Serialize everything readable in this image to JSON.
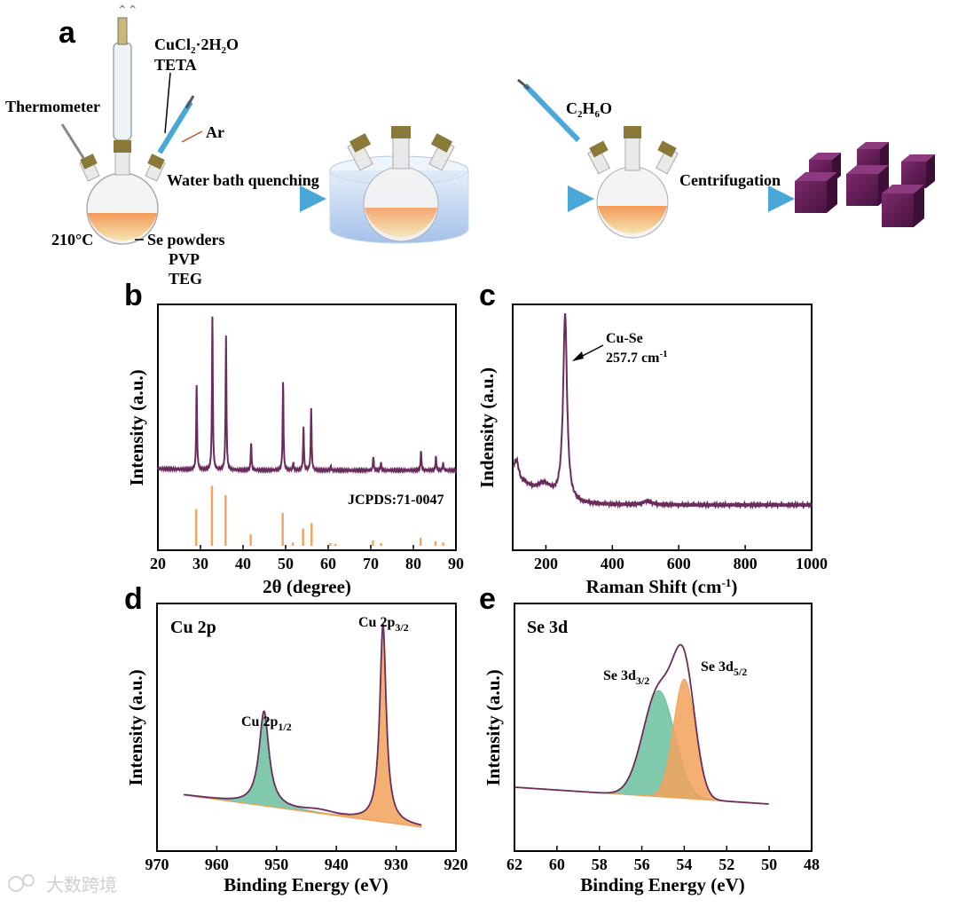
{
  "panel_labels": {
    "a": "a",
    "b": "b",
    "c": "c",
    "d": "d",
    "e": "e"
  },
  "scheme": {
    "thermometer": "Thermometer",
    "reagent_1": "CuCl",
    "reagent_1_sub": "2",
    "reagent_1_mid": "·2H",
    "reagent_1_sub2": "2",
    "reagent_1_end": "O",
    "reagent_2": "TETA",
    "gas": "Ar",
    "temperature": "210°C",
    "powder_1": "Se powders",
    "powder_2": "PVP",
    "powder_3": "TEG",
    "step_1": "Water bath quenching",
    "solvent": "C",
    "solvent_sub1": "2",
    "solvent_mid": "H",
    "solvent_sub2": "6",
    "solvent_end": "O",
    "step_2": "Centrifugation"
  },
  "watermark": "大数跨境",
  "colors": {
    "purple": "#6a2c5c",
    "orange": "#f2a25a",
    "teal": "#6bbf9f",
    "arrow": "#4aa8d8",
    "cube": "#5a1a4e"
  },
  "chart_data": [
    {
      "id": "b",
      "type": "line",
      "title": "",
      "xlabel": "2θ (degree)",
      "ylabel": "Intensity (a.u.)",
      "xlim": [
        20,
        90
      ],
      "xticks": [
        "20",
        "30",
        "40",
        "50",
        "60",
        "70",
        "80",
        "90"
      ],
      "peaks": [
        {
          "x": 29.1,
          "h": 0.55
        },
        {
          "x": 32.8,
          "h": 1.0
        },
        {
          "x": 36.0,
          "h": 0.88
        },
        {
          "x": 41.9,
          "h": 0.18
        },
        {
          "x": 49.4,
          "h": 0.58
        },
        {
          "x": 51.8,
          "h": 0.05
        },
        {
          "x": 54.2,
          "h": 0.28
        },
        {
          "x": 56.0,
          "h": 0.41
        },
        {
          "x": 60.6,
          "h": 0.03
        },
        {
          "x": 70.6,
          "h": 0.09
        },
        {
          "x": 72.4,
          "h": 0.05
        },
        {
          "x": 81.8,
          "h": 0.13
        },
        {
          "x": 85.3,
          "h": 0.09
        },
        {
          "x": 87.0,
          "h": 0.05
        }
      ],
      "reference_label": "JCPDS:71-0047",
      "reference_lines": [
        {
          "x": 29.0,
          "h": 0.55
        },
        {
          "x": 32.7,
          "h": 0.9
        },
        {
          "x": 35.9,
          "h": 0.76
        },
        {
          "x": 41.8,
          "h": 0.17
        },
        {
          "x": 49.3,
          "h": 0.49
        },
        {
          "x": 51.7,
          "h": 0.05
        },
        {
          "x": 54.1,
          "h": 0.26
        },
        {
          "x": 56.1,
          "h": 0.34
        },
        {
          "x": 60.5,
          "h": 0.04
        },
        {
          "x": 61.7,
          "h": 0.03
        },
        {
          "x": 70.5,
          "h": 0.08
        },
        {
          "x": 72.4,
          "h": 0.04
        },
        {
          "x": 81.7,
          "h": 0.12
        },
        {
          "x": 85.2,
          "h": 0.07
        },
        {
          "x": 87.0,
          "h": 0.05
        }
      ]
    },
    {
      "id": "c",
      "type": "line",
      "xlabel": "Raman Shift (cm",
      "xlabel_sup": "-1",
      "xlabel_end": ")",
      "ylabel": "Indensity (a.u.)",
      "xlim": [
        100,
        1000
      ],
      "xticks": [
        "200",
        "400",
        "600",
        "800",
        "1000"
      ],
      "baseline": 0.1,
      "peaks": [
        {
          "x": 257.7,
          "h": 1.0,
          "w": 7
        },
        {
          "x": 112,
          "h": 0.09,
          "w": 8
        },
        {
          "x": 195,
          "h": 0.06,
          "w": 25
        },
        {
          "x": 505,
          "h": 0.02,
          "w": 15
        }
      ],
      "annotation_1": "Cu-Se",
      "annotation_2": "257.7 cm",
      "annotation_sup": "-1"
    },
    {
      "id": "d",
      "type": "line",
      "title": "Cu 2p",
      "xlabel": "Binding Energy (eV)",
      "ylabel": "Intensity (a.u.)",
      "xlim": [
        970,
        920
      ],
      "xticks": [
        "970",
        "960",
        "950",
        "940",
        "930",
        "920"
      ],
      "data_range": [
        965.5,
        925.8
      ],
      "peaks": [
        {
          "name": "Cu 2p",
          "sub": "1/2",
          "center": 952.1,
          "height": 0.48,
          "color": "#6bbf9f"
        },
        {
          "name": "Cu 2p",
          "sub": "3/2",
          "center": 932.2,
          "height": 1.0,
          "color": "#f2a25a"
        }
      ]
    },
    {
      "id": "e",
      "type": "line",
      "title": "Se 3d",
      "xlabel": "Binding Energy (eV)",
      "ylabel": "Intensity (a.u.)",
      "xlim": [
        62,
        48
      ],
      "xticks": [
        "62",
        "60",
        "58",
        "56",
        "54",
        "52",
        "50",
        "48"
      ],
      "data_range": [
        62,
        50
      ],
      "peaks": [
        {
          "name": "Se 3d",
          "sub": "3/2",
          "center": 55.2,
          "height": 0.57,
          "color": "#6bbf9f"
        },
        {
          "name": "Se 3d",
          "sub": "5/2",
          "center": 54.0,
          "height": 0.64,
          "color": "#f2a25a"
        }
      ]
    }
  ]
}
